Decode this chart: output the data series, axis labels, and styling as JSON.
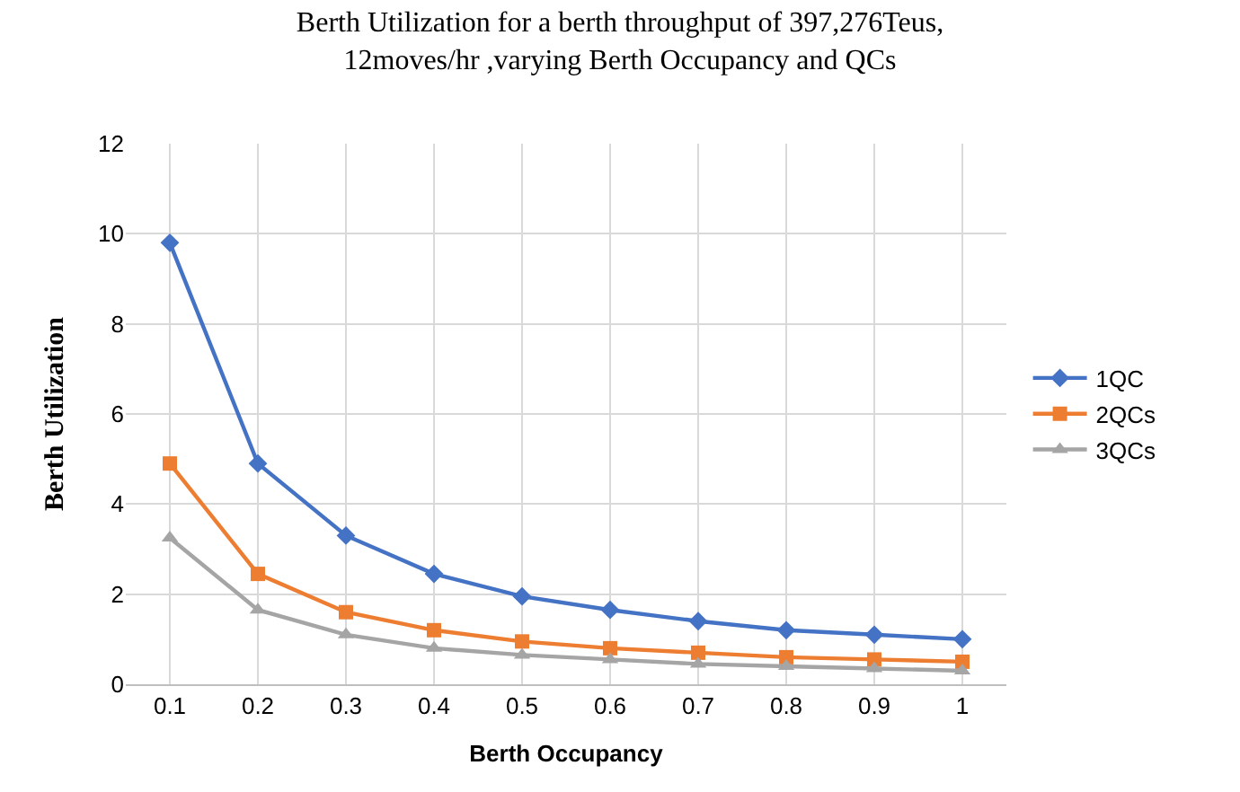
{
  "chart_data": {
    "type": "line",
    "title": "Berth Utilization for a berth throughput of 397,276Teus,\n12moves/hr ,varying Berth Occupancy and QCs",
    "xlabel": "Berth Occupancy",
    "ylabel": "Berth Utilization",
    "categories": [
      "0.1",
      "0.2",
      "0.3",
      "0.4",
      "0.5",
      "0.6",
      "0.7",
      "0.8",
      "0.9",
      "1"
    ],
    "series": [
      {
        "name": "1QC",
        "color": "#4472c4",
        "marker": "diamond",
        "values": [
          9.8,
          4.9,
          3.3,
          2.45,
          1.95,
          1.65,
          1.4,
          1.2,
          1.1,
          1.0
        ]
      },
      {
        "name": "2QCs",
        "color": "#ed7d31",
        "marker": "square",
        "values": [
          4.9,
          2.45,
          1.6,
          1.2,
          0.95,
          0.8,
          0.7,
          0.6,
          0.55,
          0.5
        ]
      },
      {
        "name": "3QCs",
        "color": "#a5a5a5",
        "marker": "triangle",
        "values": [
          3.25,
          1.65,
          1.1,
          0.8,
          0.65,
          0.55,
          0.45,
          0.4,
          0.35,
          0.3
        ]
      }
    ],
    "ylim": [
      0,
      12
    ],
    "yticks": [
      0,
      2,
      4,
      6,
      8,
      10,
      12
    ],
    "grid": true,
    "legend": "right",
    "line_style": "solid"
  }
}
